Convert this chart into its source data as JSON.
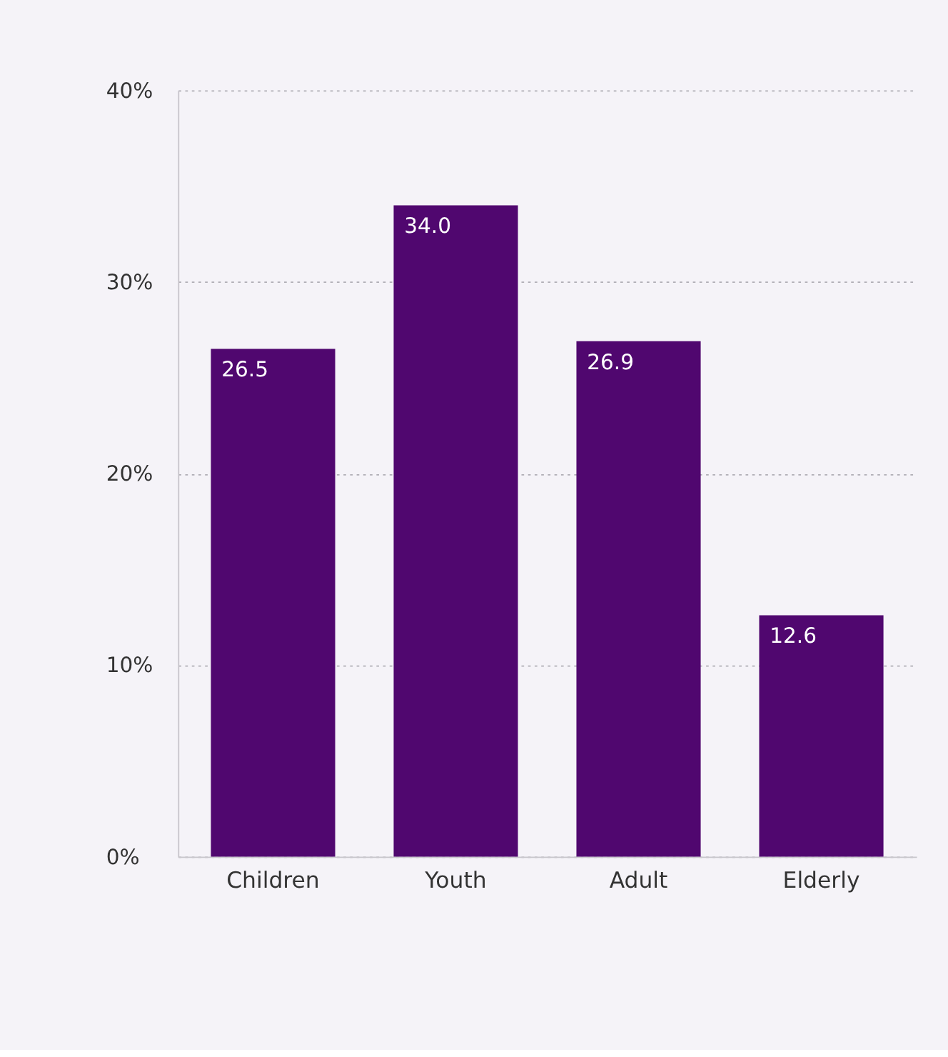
{
  "chart_data": {
    "type": "bar",
    "categories": [
      "Children",
      "Youth",
      "Adult",
      "Elderly"
    ],
    "values": [
      26.5,
      34.0,
      26.9,
      12.6
    ],
    "value_labels": [
      "26.5",
      "34.0",
      "26.9",
      "12.6"
    ],
    "color": "#50076f",
    "ylim": [
      0,
      40
    ],
    "yticks": [
      {
        "value": 0,
        "label": "0%"
      },
      {
        "value": 10,
        "label": "10%"
      },
      {
        "value": 20,
        "label": "20%"
      },
      {
        "value": 30,
        "label": "30%"
      },
      {
        "value": 40,
        "label": "40%"
      }
    ],
    "grid": "y"
  }
}
